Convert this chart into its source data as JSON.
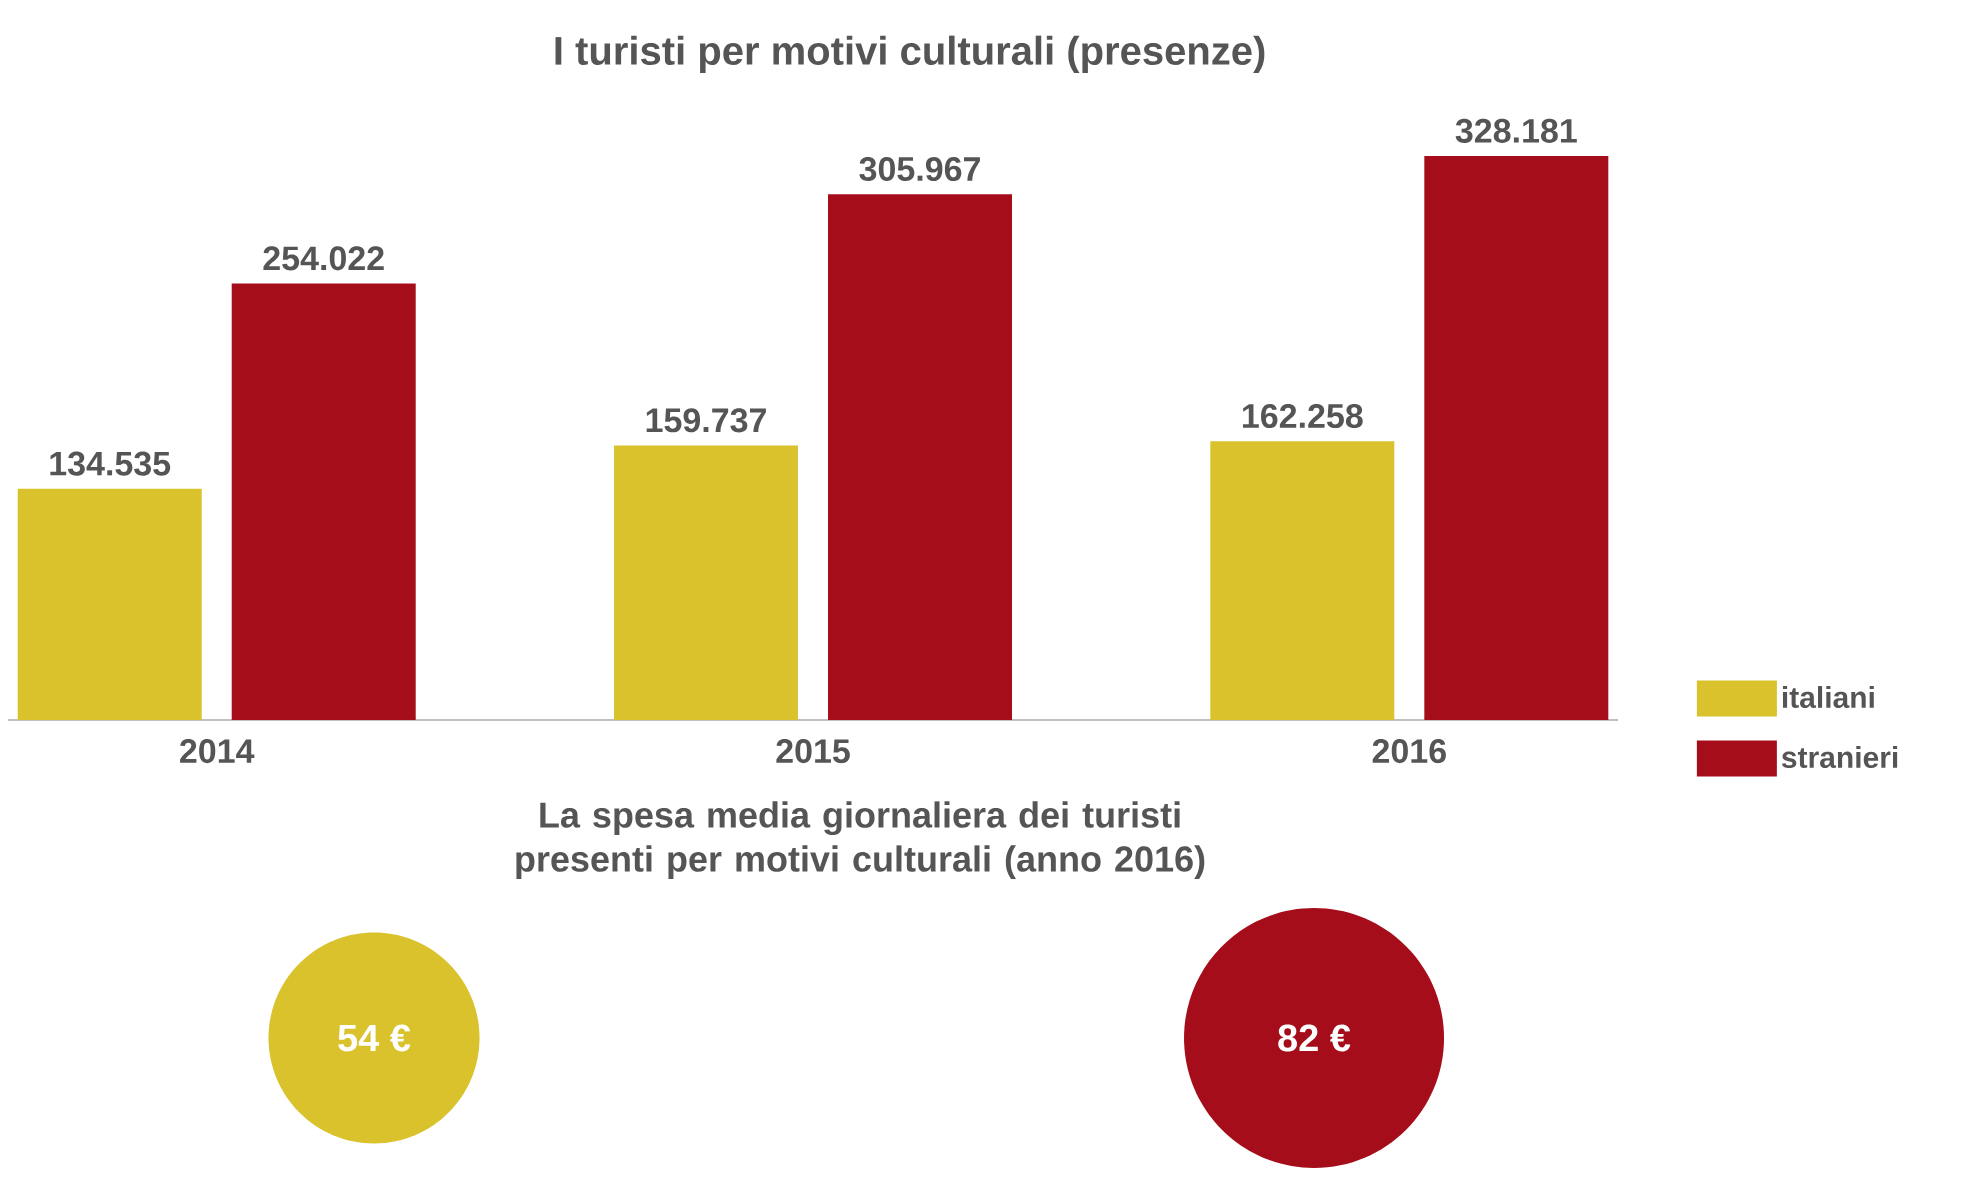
{
  "chart_data": [
    {
      "type": "bar",
      "title": "I turisti per motivi culturali (presenze)",
      "categories": [
        "2014",
        "2015",
        "2016"
      ],
      "series": [
        {
          "name": "italiani",
          "color": "#d9c22b",
          "values": [
            134535,
            159737,
            162258
          ],
          "value_labels": [
            "134.535",
            "159.737",
            "162.258"
          ]
        },
        {
          "name": "stranieri",
          "color": "#a50d1a",
          "values": [
            254022,
            305967,
            328181
          ],
          "value_labels": [
            "254.022",
            "305.967",
            "328.181"
          ]
        }
      ],
      "legend": "right",
      "tick_labels": "x"
    },
    {
      "type": "other",
      "title": "La spesa media giornaliera dei turisti presenti per motivi culturali (anno 2016)",
      "values": [
        54,
        82
      ],
      "colors": [
        "#d9c22b",
        "#a50d1a"
      ],
      "value_labels": [
        "54 €",
        "82 €"
      ]
    }
  ]
}
